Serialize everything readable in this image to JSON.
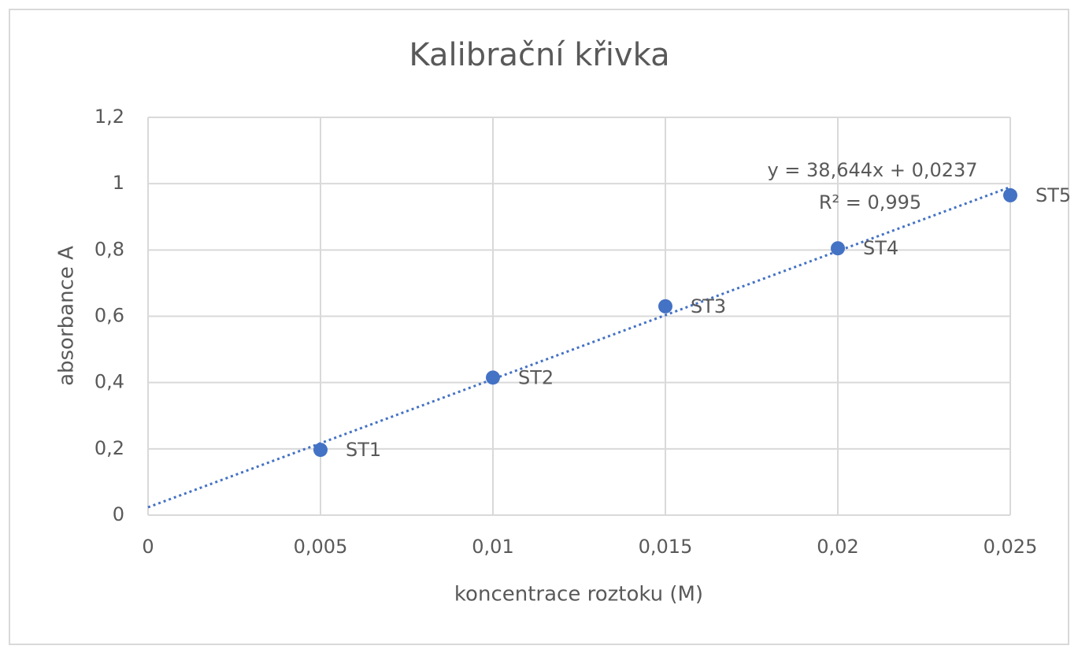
{
  "chart_data": {
    "type": "scatter",
    "title": "Kalibrační křivka",
    "x_label": "koncentrace roztoku (M)",
    "y_label": "absorbance A",
    "x": [
      0.005,
      0.01,
      0.015,
      0.02,
      0.025
    ],
    "series": [
      {
        "name": "absorbance A",
        "color": "#4472c4",
        "values": [
          0.197,
          0.415,
          0.63,
          0.805,
          0.965
        ]
      }
    ],
    "point_labels": [
      "ST1",
      "ST2",
      "ST3",
      "ST4",
      "ST5"
    ],
    "trendline": {
      "slope": 38.644,
      "intercept": 0.0237,
      "label": "y = 38,644x + 0,0237",
      "r2_label": "R² = 0,995",
      "color": "#4472c4"
    },
    "xlim": [
      0,
      0.025
    ],
    "xticks": [
      0,
      {
        "value": 0.005,
        "label": "0,005"
      },
      {
        "value": 0.01,
        "label": "0,01"
      },
      {
        "value": 0.015,
        "label": "0,015"
      },
      {
        "value": 0.02,
        "label": "0,02"
      },
      {
        "value": 0.025,
        "label": "0,025"
      }
    ],
    "ylim": [
      0,
      1.2
    ],
    "yticks": [
      0,
      {
        "value": 0.2,
        "label": "0,2"
      },
      {
        "value": 0.4,
        "label": "0,4"
      },
      {
        "value": 0.6,
        "label": "0,6"
      },
      {
        "value": 0.8,
        "label": "0,8"
      },
      1,
      {
        "value": 1.2,
        "label": "1,2"
      }
    ],
    "grid": true
  }
}
